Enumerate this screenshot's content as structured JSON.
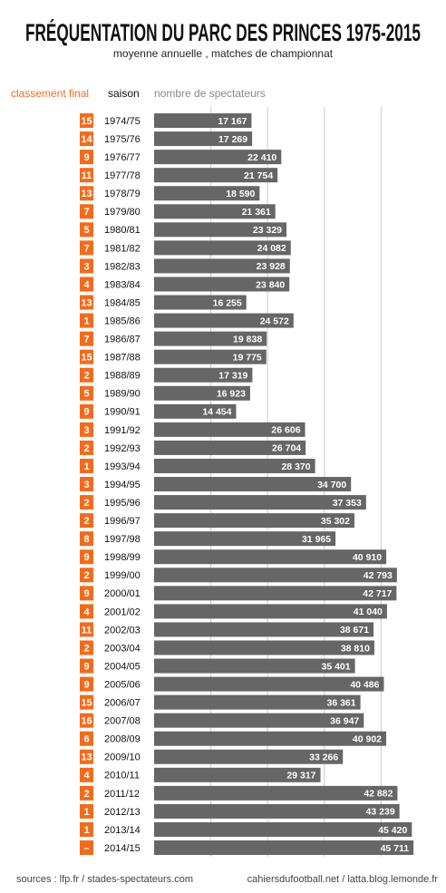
{
  "chart_data": {
    "type": "bar",
    "orientation": "horizontal",
    "title": "FRÉQUENTATION DU PARC DES PRINCES 1975-2015",
    "subtitle": "moyenne annuelle , matches de championnat",
    "rank_label": "classement final",
    "category_label": "saison",
    "x_label": "nombre de spectateurs",
    "source_left": "sources : lfp.fr / stades-spectateurs.com",
    "source_right": "cahiersdufootball.net / latta.blog.lemonde.fr",
    "categories": [
      "1974/75",
      "1975/76",
      "1976/77",
      "1977/78",
      "1978/79",
      "1979/80",
      "1980/81",
      "1981/82",
      "1982/83",
      "1983/84",
      "1984/85",
      "1985/86",
      "1986/87",
      "1987/88",
      "1988/89",
      "1989/90",
      "1990/91",
      "1991/92",
      "1992/93",
      "1993/94",
      "1994/95",
      "1995/96",
      "1996/97",
      "1997/98",
      "1998/99",
      "1999/00",
      "2000/01",
      "2001/02",
      "2002/03",
      "2003/04",
      "2004/05",
      "2005/06",
      "2006/07",
      "2007/08",
      "2008/09",
      "2009/10",
      "2010/11",
      "2011/12",
      "2012/13",
      "2013/14",
      "2014/15"
    ],
    "ranks": [
      "15",
      "14",
      "9",
      "11",
      "13",
      "7",
      "5",
      "7",
      "3",
      "4",
      "13",
      "1",
      "7",
      "15",
      "2",
      "5",
      "9",
      "3",
      "2",
      "1",
      "3",
      "2",
      "2",
      "8",
      "9",
      "2",
      "9",
      "4",
      "11",
      "2",
      "9",
      "9",
      "15",
      "16",
      "6",
      "13",
      "4",
      "2",
      "1",
      "1",
      "–"
    ],
    "values": [
      17167,
      17269,
      22410,
      21754,
      18590,
      21361,
      23329,
      24082,
      23928,
      23840,
      16255,
      24572,
      19838,
      19775,
      17319,
      16923,
      14454,
      26606,
      26704,
      28370,
      34700,
      37353,
      35302,
      31965,
      40910,
      42793,
      42717,
      41040,
      38671,
      38810,
      35401,
      40486,
      36361,
      36947,
      40902,
      33266,
      29317,
      42882,
      43239,
      45420,
      45711
    ],
    "value_labels": [
      "17 167",
      "17 269",
      "22 410",
      "21 754",
      "18 590",
      "21 361",
      "23 329",
      "24 082",
      "23 928",
      "23 840",
      "16 255",
      "24 572",
      "19 838",
      "19 775",
      "17 319",
      "16 923",
      "14 454",
      "26 606",
      "26 704",
      "28 370",
      "34 700",
      "37 353",
      "35 302",
      "31 965",
      "40 910",
      "42 793",
      "42 717",
      "41 040",
      "38 671",
      "38 810",
      "35 401",
      "40 486",
      "36 361",
      "36 947",
      "40 902",
      "33 266",
      "29 317",
      "42 882",
      "43 239",
      "45 420",
      "45 711"
    ],
    "color": "#666666",
    "rank_color": "#f26b1d",
    "xlim": [
      0,
      50000
    ],
    "xticks": [
      10000,
      20000,
      30000,
      40000
    ],
    "grid": true
  }
}
